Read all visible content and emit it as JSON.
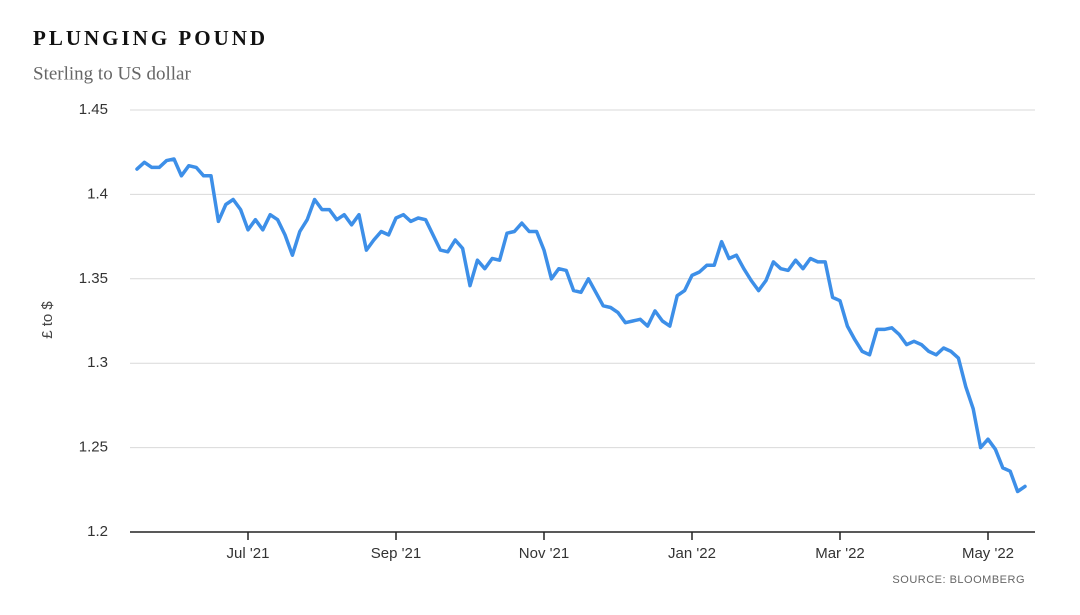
{
  "chart_data": {
    "type": "line",
    "title": "PLUNGING POUND",
    "subtitle": "Sterling to US dollar",
    "y_label": "£ to $",
    "source": "SOURCE: BLOOMBERG",
    "categories": [
      null,
      null,
      null,
      null,
      null,
      null,
      null,
      null,
      null,
      null,
      null,
      null,
      null,
      null,
      null,
      "Jul '21",
      null,
      null,
      null,
      null,
      null,
      null,
      null,
      null,
      null,
      null,
      null,
      null,
      null,
      null,
      null,
      null,
      null,
      null,
      null,
      "Sep '21",
      null,
      null,
      null,
      null,
      null,
      null,
      null,
      null,
      null,
      null,
      null,
      null,
      null,
      null,
      null,
      null,
      null,
      null,
      null,
      "Nov '21",
      null,
      null,
      null,
      null,
      null,
      null,
      null,
      null,
      null,
      null,
      null,
      null,
      null,
      null,
      null,
      null,
      null,
      null,
      null,
      "Jan '22",
      null,
      null,
      null,
      null,
      null,
      null,
      null,
      null,
      null,
      null,
      null,
      null,
      null,
      null,
      null,
      null,
      null,
      null,
      null,
      "Mar '22",
      null,
      null,
      null,
      null,
      null,
      null,
      null,
      null,
      null,
      null,
      null,
      null,
      null,
      null,
      null,
      null,
      null,
      null,
      null,
      "May '22",
      null,
      null,
      null,
      null,
      null
    ],
    "values": [
      1.415,
      1.419,
      1.416,
      1.416,
      1.42,
      1.421,
      1.411,
      1.417,
      1.416,
      1.411,
      1.411,
      1.384,
      1.394,
      1.397,
      1.391,
      1.379,
      1.385,
      1.379,
      1.388,
      1.385,
      1.376,
      1.364,
      1.378,
      1.385,
      1.397,
      1.391,
      1.391,
      1.385,
      1.388,
      1.382,
      1.388,
      1.367,
      1.373,
      1.378,
      1.376,
      1.386,
      1.388,
      1.384,
      1.386,
      1.385,
      1.376,
      1.367,
      1.366,
      1.373,
      1.368,
      1.346,
      1.361,
      1.356,
      1.362,
      1.361,
      1.377,
      1.378,
      1.383,
      1.378,
      1.378,
      1.367,
      1.35,
      1.356,
      1.355,
      1.343,
      1.342,
      1.35,
      1.342,
      1.334,
      1.333,
      1.33,
      1.324,
      1.325,
      1.326,
      1.322,
      1.331,
      1.325,
      1.322,
      1.34,
      1.343,
      1.352,
      1.354,
      1.358,
      1.358,
      1.372,
      1.362,
      1.364,
      1.356,
      1.349,
      1.343,
      1.349,
      1.36,
      1.356,
      1.355,
      1.361,
      1.356,
      1.362,
      1.36,
      1.36,
      1.339,
      1.337,
      1.322,
      1.314,
      1.307,
      1.305,
      1.32,
      1.32,
      1.321,
      1.317,
      1.311,
      1.313,
      1.311,
      1.307,
      1.305,
      1.309,
      1.307,
      1.303,
      1.286,
      1.273,
      1.25,
      1.255,
      1.249,
      1.238,
      1.236,
      1.224,
      1.227
    ],
    "color": "#3d8fe8",
    "ylim": [
      1.2,
      1.45
    ],
    "yticks": [
      1.2,
      1.25,
      1.3,
      1.35,
      1.4,
      1.45
    ],
    "grid": true
  }
}
